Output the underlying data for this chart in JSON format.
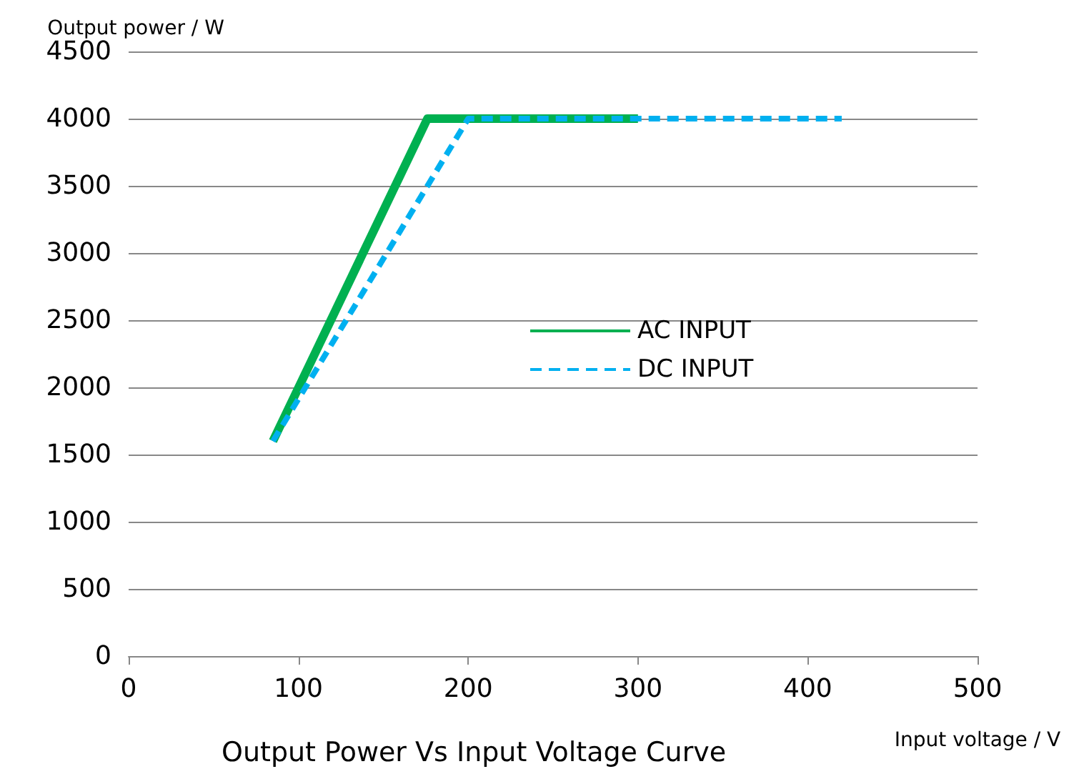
{
  "chart_data": {
    "type": "line",
    "title": "Output Power Vs Input Voltage Curve",
    "xlabel": "Input voltage / V",
    "ylabel": "Output power / W",
    "xlim": [
      0,
      500
    ],
    "xticks": [
      0,
      100,
      200,
      300,
      400,
      500
    ],
    "ylim": [
      0,
      4500
    ],
    "yticks": [
      0,
      500,
      1000,
      1500,
      2000,
      2500,
      3000,
      3500,
      4000,
      4500
    ],
    "grid": "y",
    "legend": "right",
    "marker": "none",
    "series": [
      {
        "name": "AC INPUT",
        "color": "#00b050",
        "x": [
          85,
          176,
          300
        ],
        "values": [
          1600,
          4000,
          4000
        ],
        "line_style": "solid"
      },
      {
        "name": "DC INPUT",
        "color": "#00b0f0",
        "x": [
          85,
          200,
          420
        ],
        "values": [
          1600,
          4000,
          4000
        ],
        "line_style": "dashed"
      }
    ]
  }
}
